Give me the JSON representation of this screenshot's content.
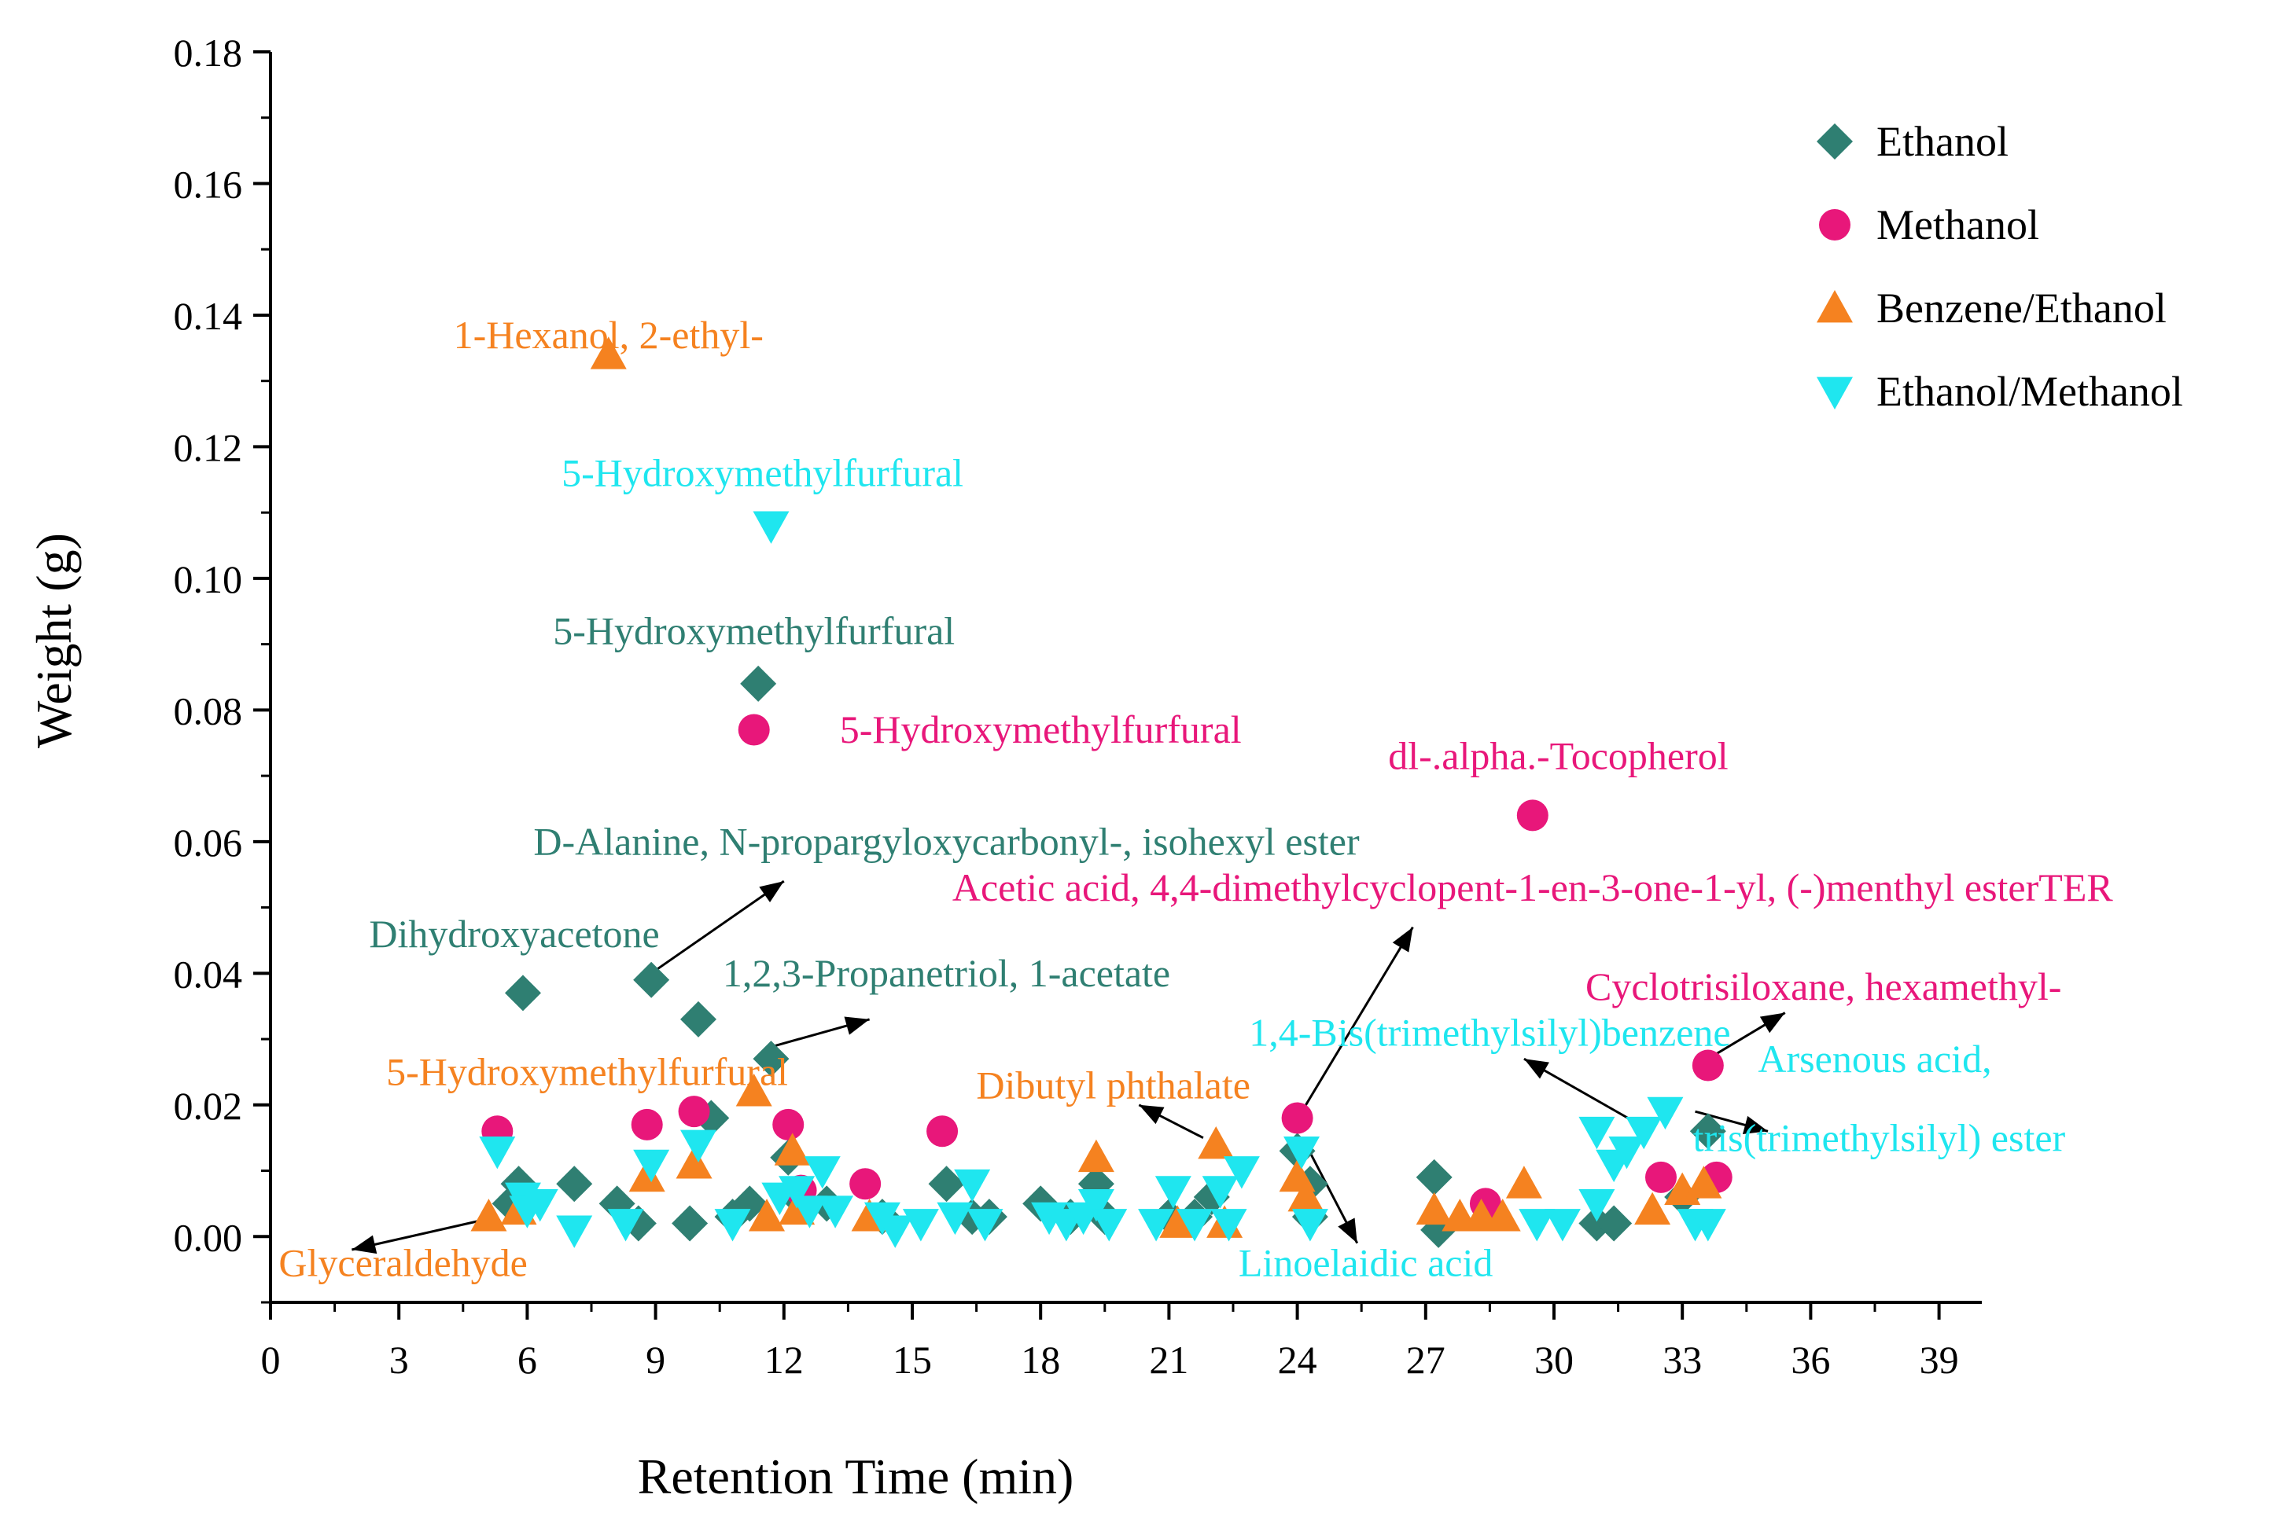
{
  "chart_data": {
    "type": "scatter",
    "xlabel": "Retention Time (min)",
    "ylabel": "Weight (g)",
    "xlim": [
      0,
      40
    ],
    "ylim": [
      -0.01,
      0.18
    ],
    "xticks": [
      0,
      3,
      6,
      9,
      12,
      15,
      18,
      21,
      24,
      27,
      30,
      33,
      36,
      39
    ],
    "xtick_labels": [
      "0",
      "3",
      "6",
      "9",
      "12",
      "15",
      "18",
      "21",
      "24",
      "27",
      "30",
      "33",
      "36",
      "39"
    ],
    "yticks": [
      0.0,
      0.02,
      0.04,
      0.06,
      0.08,
      0.1,
      0.12,
      0.14,
      0.16,
      0.18
    ],
    "ytick_labels": [
      "0.00",
      "0.02",
      "0.04",
      "0.06",
      "0.08",
      "0.10",
      "0.12",
      "0.14",
      "0.16",
      "0.18"
    ],
    "legend_position": "top-right",
    "series": [
      {
        "name": "Ethanol",
        "marker": "diamond",
        "color": "#2f7f72",
        "points": [
          [
            5.6,
            0.005
          ],
          [
            5.9,
            0.037
          ],
          [
            5.8,
            0.008
          ],
          [
            7.1,
            0.008
          ],
          [
            8.1,
            0.005
          ],
          [
            8.6,
            0.002
          ],
          [
            8.9,
            0.039
          ],
          [
            9.8,
            0.002
          ],
          [
            10.0,
            0.033
          ],
          [
            10.3,
            0.018
          ],
          [
            10.8,
            0.003
          ],
          [
            11.2,
            0.005
          ],
          [
            11.4,
            0.084
          ],
          [
            11.7,
            0.027
          ],
          [
            12.1,
            0.012
          ],
          [
            12.3,
            0.006
          ],
          [
            13.0,
            0.005
          ],
          [
            14.3,
            0.003
          ],
          [
            15.8,
            0.008
          ],
          [
            16.4,
            0.003
          ],
          [
            16.8,
            0.003
          ],
          [
            18.0,
            0.005
          ],
          [
            18.7,
            0.003
          ],
          [
            19.3,
            0.008
          ],
          [
            19.5,
            0.003
          ],
          [
            21.0,
            0.003
          ],
          [
            21.6,
            0.003
          ],
          [
            22.0,
            0.006
          ],
          [
            24.0,
            0.013
          ],
          [
            24.3,
            0.008
          ],
          [
            24.3,
            0.003
          ],
          [
            27.2,
            0.009
          ],
          [
            27.3,
            0.001
          ],
          [
            31.0,
            0.002
          ],
          [
            31.4,
            0.002
          ],
          [
            33.0,
            0.006
          ],
          [
            33.6,
            0.016
          ]
        ]
      },
      {
        "name": "Methanol",
        "marker": "circle",
        "color": "#e8177a",
        "points": [
          [
            5.3,
            0.016
          ],
          [
            8.8,
            0.017
          ],
          [
            9.9,
            0.019
          ],
          [
            11.3,
            0.077
          ],
          [
            12.1,
            0.017
          ],
          [
            12.4,
            0.007
          ],
          [
            13.9,
            0.008
          ],
          [
            15.7,
            0.016
          ],
          [
            24.0,
            0.018
          ],
          [
            28.4,
            0.005
          ],
          [
            29.5,
            0.064
          ],
          [
            32.5,
            0.009
          ],
          [
            33.6,
            0.026
          ],
          [
            33.8,
            0.009
          ]
        ]
      },
      {
        "name": "Benzene/Ethanol",
        "marker": "triangle-up",
        "color": "#f58220",
        "points": [
          [
            5.1,
            0.003
          ],
          [
            5.8,
            0.004
          ],
          [
            7.9,
            0.134
          ],
          [
            8.8,
            0.009
          ],
          [
            9.9,
            0.011
          ],
          [
            11.3,
            0.022
          ],
          [
            11.6,
            0.003
          ],
          [
            12.2,
            0.013
          ],
          [
            12.3,
            0.004
          ],
          [
            14.0,
            0.003
          ],
          [
            19.3,
            0.012
          ],
          [
            21.2,
            0.002
          ],
          [
            22.1,
            0.014
          ],
          [
            22.3,
            0.002
          ],
          [
            24.0,
            0.009
          ],
          [
            24.2,
            0.006
          ],
          [
            27.2,
            0.004
          ],
          [
            27.8,
            0.003
          ],
          [
            28.3,
            0.003
          ],
          [
            28.8,
            0.003
          ],
          [
            29.3,
            0.008
          ],
          [
            32.3,
            0.004
          ],
          [
            33.0,
            0.007
          ],
          [
            33.5,
            0.008
          ]
        ]
      },
      {
        "name": "Ethanol/Methanol",
        "marker": "triangle-down",
        "color": "#1fe6ef",
        "points": [
          [
            5.3,
            0.013
          ],
          [
            5.9,
            0.006
          ],
          [
            6.0,
            0.004
          ],
          [
            6.3,
            0.005
          ],
          [
            7.1,
            0.001
          ],
          [
            8.3,
            0.002
          ],
          [
            8.9,
            0.011
          ],
          [
            10.0,
            0.014
          ],
          [
            10.8,
            0.002
          ],
          [
            11.7,
            0.108
          ],
          [
            11.9,
            0.006
          ],
          [
            12.3,
            0.007
          ],
          [
            12.6,
            0.004
          ],
          [
            12.9,
            0.01
          ],
          [
            13.2,
            0.004
          ],
          [
            14.3,
            0.003
          ],
          [
            14.6,
            0.001
          ],
          [
            15.2,
            0.002
          ],
          [
            16.0,
            0.003
          ],
          [
            16.4,
            0.008
          ],
          [
            16.7,
            0.002
          ],
          [
            18.2,
            0.003
          ],
          [
            18.6,
            0.002
          ],
          [
            19.0,
            0.003
          ],
          [
            19.3,
            0.005
          ],
          [
            19.6,
            0.002
          ],
          [
            20.7,
            0.002
          ],
          [
            21.1,
            0.007
          ],
          [
            21.6,
            0.002
          ],
          [
            22.2,
            0.007
          ],
          [
            22.4,
            0.002
          ],
          [
            22.7,
            0.01
          ],
          [
            24.1,
            0.013
          ],
          [
            24.3,
            0.002
          ],
          [
            29.6,
            0.002
          ],
          [
            30.2,
            0.002
          ],
          [
            31.0,
            0.005
          ],
          [
            31.0,
            0.016
          ],
          [
            31.4,
            0.011
          ],
          [
            31.7,
            0.013
          ],
          [
            32.1,
            0.016
          ],
          [
            32.6,
            0.019
          ],
          [
            33.3,
            0.002
          ],
          [
            33.6,
            0.002
          ]
        ]
      }
    ],
    "annotations": [
      {
        "text": "1-Hexanol, 2-ethyl-",
        "color": "#f58220",
        "x": 7.9,
        "y": 0.135
      },
      {
        "text": "5-Hydroxymethylfurfural",
        "color": "#1fe6ef",
        "x": 11.5,
        "y": 0.114
      },
      {
        "text": "5-Hydroxymethylfurfural",
        "color": "#2f7f72",
        "x": 11.3,
        "y": 0.09
      },
      {
        "text": "5-Hydroxymethylfurfural",
        "color": "#e8177a",
        "x": 18.0,
        "y": 0.075
      },
      {
        "text": "dl-.alpha.-Tocopherol",
        "color": "#e8177a",
        "x": 30.1,
        "y": 0.071
      },
      {
        "text": "D-Alanine, N-propargyloxycarbonyl-, isohexyl ester",
        "color": "#2f7f72",
        "x": 15.8,
        "y": 0.058
      },
      {
        "text": "Acetic acid, 4,4-dimethylcyclopent-1-en-3-one-1-yl, (-)menthyl esterTER",
        "color": "#e8177a",
        "x": 29.5,
        "y": 0.051
      },
      {
        "text": "Dihydroxyacetone",
        "color": "#2f7f72",
        "x": 5.7,
        "y": 0.044
      },
      {
        "text": "1,2,3-Propanetriol, 1-acetate",
        "color": "#2f7f72",
        "x": 15.8,
        "y": 0.038
      },
      {
        "text": "Cyclotrisiloxane, hexamethyl-",
        "color": "#e8177a",
        "x": 36.3,
        "y": 0.036
      },
      {
        "text": "1,4-Bis(trimethylsilyl)benzene",
        "color": "#1fe6ef",
        "x": 28.5,
        "y": 0.029
      },
      {
        "text": "5-Hydroxymethylfurfural",
        "color": "#f58220",
        "x": 7.4,
        "y": 0.023
      },
      {
        "text": "Arsenous acid,",
        "color": "#1fe6ef",
        "x": 37.5,
        "y": 0.025
      },
      {
        "text": "tris(trimethylsilyl) ester",
        "color": "#1fe6ef",
        "x": 37.6,
        "y": 0.013
      },
      {
        "text": "Dibutyl phthalate",
        "color": "#f58220",
        "x": 19.7,
        "y": 0.021
      },
      {
        "text": "Glyceraldehyde",
        "color": "#f58220",
        "x": 3.1,
        "y": -0.006
      },
      {
        "text": "Linoelaidic acid",
        "color": "#1fe6ef",
        "x": 25.6,
        "y": -0.006
      }
    ],
    "arrows": [
      {
        "from": [
          8.9,
          0.04
        ],
        "to": [
          12.0,
          0.054
        ]
      },
      {
        "from": [
          11.8,
          0.029
        ],
        "to": [
          14.0,
          0.033
        ]
      },
      {
        "from": [
          24.2,
          0.02
        ],
        "to": [
          26.7,
          0.047
        ]
      },
      {
        "from": [
          33.6,
          0.027
        ],
        "to": [
          35.4,
          0.034
        ]
      },
      {
        "from": [
          32.0,
          0.017
        ],
        "to": [
          29.3,
          0.027
        ]
      },
      {
        "from": [
          33.3,
          0.019
        ],
        "to": [
          35.0,
          0.016
        ]
      },
      {
        "from": [
          21.8,
          0.015
        ],
        "to": [
          20.3,
          0.02
        ]
      },
      {
        "from": [
          24.2,
          0.014
        ],
        "to": [
          25.4,
          -0.001
        ]
      },
      {
        "from": [
          5.3,
          0.003
        ],
        "to": [
          1.9,
          -0.002
        ]
      }
    ]
  }
}
